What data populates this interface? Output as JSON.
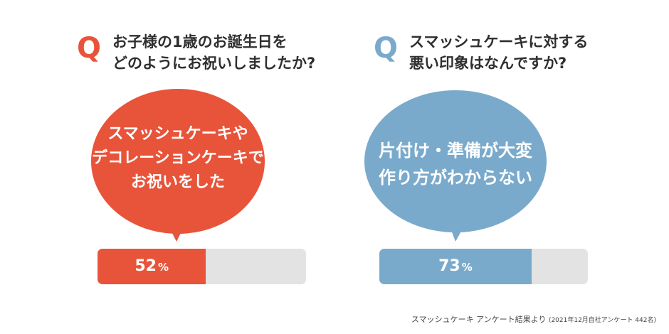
{
  "colors": {
    "accent_orange": "#e8543a",
    "accent_blue": "#7aaacb",
    "track_gray": "#e3e3e3"
  },
  "chart_data": [
    {
      "type": "bar",
      "q_letter": "Q",
      "question_lines": [
        "お子様の1歳のお誕生日を",
        "どのようにお祝いしましたか?"
      ],
      "answer_lines": [
        "スマッシュケーキや",
        "デコレーションケーキで",
        "お祝いをした"
      ],
      "value": 52,
      "value_text": "52",
      "unit": "%",
      "color": "#e8543a"
    },
    {
      "type": "bar",
      "q_letter": "Q",
      "question_lines": [
        "スマッシュケーキに対する",
        "悪い印象はなんですか?"
      ],
      "answer_lines": [
        "片付け・準備が大変",
        "作り方がわからない"
      ],
      "value": 73,
      "value_text": "73",
      "unit": "%",
      "color": "#7aaacb"
    }
  ],
  "footnote": {
    "main": "スマッシュケーキ アンケート結果より",
    "detail": "(2021年12月自社アンケート 442名)"
  }
}
